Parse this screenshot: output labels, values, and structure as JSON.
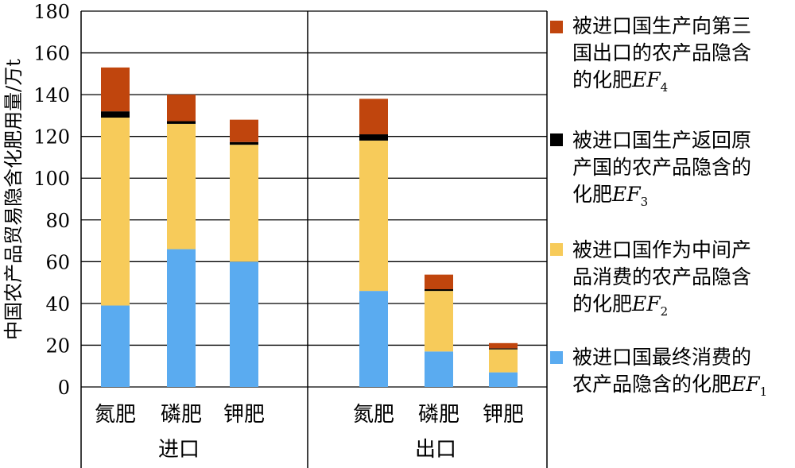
{
  "chart_data": {
    "type": "bar",
    "stacked": true,
    "ylabel": "中国农产品贸易隐含化肥用量/万t",
    "ylim": [
      0,
      180
    ],
    "yticks": [
      0,
      20,
      40,
      60,
      80,
      100,
      120,
      140,
      160,
      180
    ],
    "grid": true,
    "legend_position": "right",
    "groups": [
      {
        "name": "进口",
        "categories": [
          "氮肥",
          "磷肥",
          "钾肥"
        ]
      },
      {
        "name": "出口",
        "categories": [
          "氮肥",
          "磷肥",
          "钾肥"
        ]
      }
    ],
    "series": [
      {
        "key": "EF1",
        "name": "被进口国最终消费的农产品隐含的化肥EF1",
        "label_text": "被进口国最终消费的农产品隐含的化肥",
        "symbol": "EF",
        "sub": "1",
        "color": "#5aabf0",
        "values": [
          39,
          66,
          60,
          46,
          17,
          7
        ]
      },
      {
        "key": "EF2",
        "name": "被进口国作为中间产品消费的农产品隐含的化肥EF2",
        "label_text": "被进口国作为中间产品消费的农产品隐含的化肥",
        "symbol": "EF",
        "sub": "2",
        "color": "#f7cb5a",
        "values": [
          90,
          60,
          56,
          72,
          29,
          11
        ]
      },
      {
        "key": "EF3",
        "name": "被进口国生产返回原产国的农产品隐含的化肥EF3",
        "label_text": "被进口国生产返回原产国的农产品隐含的化肥",
        "symbol": "EF",
        "sub": "3",
        "color": "#000000",
        "values": [
          3,
          1.3,
          1.3,
          3,
          0.8,
          0.5
        ]
      },
      {
        "key": "EF4",
        "name": "被进口国生产向第三国出口的农产品隐含的化肥EF4",
        "label_text": "被进口国生产向第三国出口的农产品隐含的化肥",
        "symbol": "EF",
        "sub": "4",
        "color": "#c0450d",
        "values": [
          21,
          12.7,
          10.7,
          17,
          7,
          2.5
        ]
      }
    ]
  },
  "legend": {
    "items": [
      {
        "lines": [
          "被进口国生产向第三",
          "国出口的农产品隐含",
          "的化肥"
        ],
        "symbol": "EF",
        "sub": "4",
        "color": "#c0450d"
      },
      {
        "lines": [
          "被进口国生产返回原",
          "产国的农产品隐含的",
          "化肥"
        ],
        "symbol": "EF",
        "sub": "3",
        "color": "#000000"
      },
      {
        "lines": [
          "被进口国作为中间产",
          "品消费的农产品隐含",
          "的化肥"
        ],
        "symbol": "EF",
        "sub": "2",
        "color": "#f7cb5a"
      },
      {
        "lines": [
          "被进口国最终消费的",
          "农产品隐含的化肥"
        ],
        "symbol": "EF",
        "sub": "1",
        "color": "#5aabf0"
      }
    ]
  }
}
